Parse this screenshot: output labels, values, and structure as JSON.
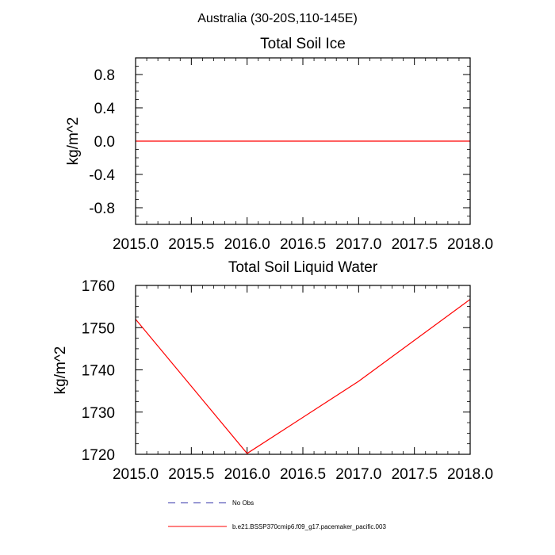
{
  "figure": {
    "title": "Australia (30-20S,110-145E)"
  },
  "chart_data": [
    {
      "type": "line",
      "title": "Total Soil Ice",
      "xlabel": "",
      "ylabel": "kg/m^2",
      "xlim": [
        2015.0,
        2018.0
      ],
      "ylim": [
        -1.0,
        1.0
      ],
      "x_ticks": [
        "2015.0",
        "2015.5",
        "2016.0",
        "2016.5",
        "2017.0",
        "2017.5",
        "2018.0"
      ],
      "y_ticks": [
        "0.8",
        "0.4",
        "0.0",
        "-0.4",
        "-0.8"
      ],
      "grid": false,
      "series": [
        {
          "name": "b.e21.BSSP370cmip6.f09_g17.pacemaker_pacific.003",
          "color": "#ff0000",
          "x": [
            2015.0,
            2016.0,
            2017.0,
            2018.0
          ],
          "values": [
            0.0,
            0.0,
            0.0,
            0.0
          ]
        }
      ]
    },
    {
      "type": "line",
      "title": "Total Soil Liquid Water",
      "xlabel": "",
      "ylabel": "kg/m^2",
      "xlim": [
        2015.0,
        2018.0
      ],
      "ylim": [
        1720,
        1760
      ],
      "x_ticks": [
        "2015.0",
        "2015.5",
        "2016.0",
        "2016.5",
        "2017.0",
        "2017.5",
        "2018.0"
      ],
      "y_ticks": [
        "1760",
        "1750",
        "1740",
        "1730",
        "1720"
      ],
      "grid": false,
      "series": [
        {
          "name": "b.e21.BSSP370cmip6.f09_g17.pacemaker_pacific.003",
          "color": "#ff0000",
          "x": [
            2015.0,
            2016.0,
            2017.0,
            2018.0
          ],
          "values": [
            1752.0,
            1720.2,
            1737.3,
            1756.7
          ]
        }
      ]
    }
  ],
  "legend": {
    "position": "bottom",
    "items": [
      {
        "label": "No Obs",
        "color": "#3333aa",
        "style": "dashed"
      },
      {
        "label": "b.e21.BSSP370cmip6.f09_g17.pacemaker_pacific.003",
        "color": "#ff0000",
        "style": "solid"
      }
    ]
  }
}
